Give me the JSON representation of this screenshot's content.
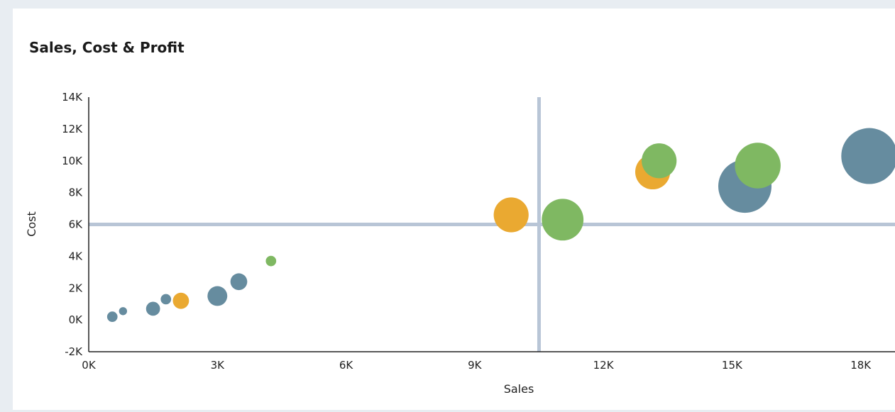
{
  "chart_data": {
    "type": "scatter",
    "title": "Sales, Cost & Profit",
    "xlabel": "Sales",
    "ylabel": "Cost",
    "xlim": [
      0,
      18800
    ],
    "ylim": [
      -2000,
      14000
    ],
    "x_ticks": [
      0,
      3000,
      6000,
      9000,
      12000,
      15000,
      18000
    ],
    "x_tick_labels": [
      "0K",
      "3K",
      "6K",
      "9K",
      "12K",
      "15K",
      "18K"
    ],
    "y_ticks": [
      -2000,
      0,
      2000,
      4000,
      6000,
      8000,
      10000,
      12000,
      14000
    ],
    "y_tick_labels": [
      "-2K",
      "0K",
      "2K",
      "4K",
      "6K",
      "8K",
      "10K",
      "12K",
      "14K"
    ],
    "reference_lines": {
      "x": 10500,
      "y": 6000
    },
    "legend": "none",
    "grid": false,
    "series": [
      {
        "color": "#668c9f",
        "points": [
          {
            "x": 550,
            "y": 200,
            "size": 2.5
          },
          {
            "x": 800,
            "y": 550,
            "size": 1.5
          },
          {
            "x": 1500,
            "y": 700,
            "size": 4.5
          },
          {
            "x": 1800,
            "y": 1300,
            "size": 2.5
          },
          {
            "x": 3000,
            "y": 1500,
            "size": 9
          },
          {
            "x": 3500,
            "y": 2400,
            "size": 6.5
          },
          {
            "x": 15300,
            "y": 8400,
            "size": 65
          },
          {
            "x": 18200,
            "y": 10300,
            "size": 72
          }
        ]
      },
      {
        "color": "#eaa931",
        "points": [
          {
            "x": 2150,
            "y": 1200,
            "size": 6
          },
          {
            "x": 9850,
            "y": 6600,
            "size": 28
          },
          {
            "x": 13150,
            "y": 9300,
            "size": 28
          }
        ]
      },
      {
        "color": "#7fb862",
        "points": [
          {
            "x": 4250,
            "y": 3700,
            "size": 2.5
          },
          {
            "x": 11050,
            "y": 6300,
            "size": 40
          },
          {
            "x": 13300,
            "y": 10000,
            "size": 28
          },
          {
            "x": 15600,
            "y": 9700,
            "size": 48
          }
        ]
      }
    ]
  }
}
